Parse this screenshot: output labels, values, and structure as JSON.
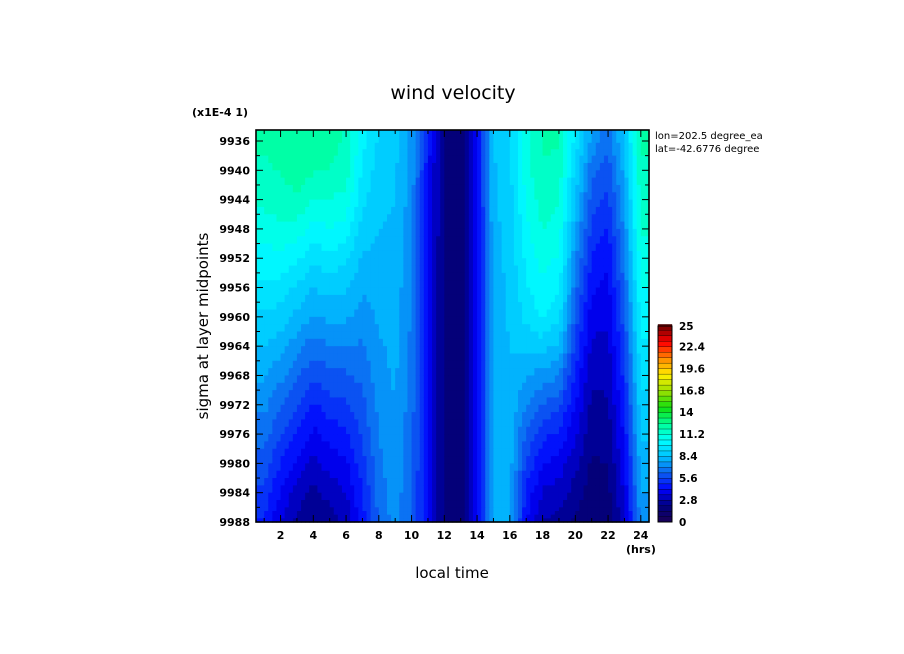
{
  "figure": {
    "title": "wind velocity",
    "scale_note": "(x1E-4 1)",
    "location": {
      "lon_text": "lon=202.5 degree_ea",
      "lat_text": "lat=-42.6776 degree"
    }
  },
  "chart_data": {
    "type": "heatmap",
    "title": "wind velocity",
    "xlabel": "local time",
    "xunit": "(hrs)",
    "ylabel": "sigma at layer midpoints",
    "yscale_note": "(x1E-4 1)",
    "xlim": [
      0.5,
      24.5
    ],
    "ylim": [
      9988,
      9934.5
    ],
    "x_ticks": [
      2,
      4,
      6,
      8,
      10,
      12,
      14,
      16,
      18,
      20,
      22,
      24
    ],
    "y_ticks": [
      9936,
      9940,
      9944,
      9948,
      9952,
      9956,
      9960,
      9964,
      9968,
      9972,
      9976,
      9980,
      9984,
      9988
    ],
    "x": [
      1,
      2,
      3,
      4,
      5,
      6,
      7,
      8,
      9,
      10,
      11,
      12,
      13,
      14,
      15,
      16,
      17,
      18,
      19,
      20,
      21,
      22,
      23,
      24
    ],
    "y": [
      9936,
      9940,
      9944,
      9948,
      9952,
      9956,
      9960,
      9964,
      9968,
      9972,
      9976,
      9980,
      9984,
      9988
    ],
    "z": [
      [
        12.0,
        12.3,
        12.4,
        12.3,
        12.1,
        11.8,
        10.0,
        9.0,
        8.6,
        7.5,
        4.6,
        1.8,
        1.6,
        4.0,
        8.4,
        9.0,
        11.0,
        12.0,
        12.0,
        9.5,
        7.5,
        6.5,
        8.5,
        12.0
      ],
      [
        11.8,
        11.9,
        12.3,
        12.0,
        11.9,
        11.6,
        9.6,
        8.8,
        8.5,
        7.4,
        4.5,
        1.8,
        1.6,
        4.0,
        8.3,
        8.9,
        10.9,
        11.8,
        11.7,
        8.9,
        6.6,
        5.9,
        8.0,
        11.8
      ],
      [
        11.4,
        11.6,
        11.8,
        11.1,
        11.2,
        10.9,
        9.3,
        8.6,
        8.4,
        7.3,
        4.5,
        1.8,
        1.6,
        4.0,
        8.3,
        8.8,
        10.6,
        11.6,
        11.3,
        8.4,
        6.0,
        5.4,
        7.6,
        11.6
      ],
      [
        10.8,
        11.0,
        10.9,
        10.2,
        10.5,
        10.2,
        8.8,
        8.4,
        8.3,
        7.2,
        4.5,
        1.8,
        1.6,
        4.0,
        8.2,
        8.7,
        10.3,
        11.2,
        10.9,
        7.8,
        5.4,
        4.9,
        7.2,
        11.3
      ],
      [
        10.2,
        10.3,
        10.0,
        9.3,
        9.6,
        9.3,
        8.3,
        8.2,
        8.2,
        7.1,
        4.4,
        1.8,
        1.6,
        4.0,
        8.2,
        8.6,
        10.0,
        10.8,
        10.4,
        7.2,
        4.8,
        4.4,
        6.8,
        10.9
      ],
      [
        9.6,
        9.5,
        9.0,
        8.4,
        8.7,
        8.5,
        7.8,
        8.0,
        8.1,
        7.0,
        4.4,
        1.8,
        1.6,
        4.0,
        8.1,
        8.5,
        9.7,
        10.4,
        9.9,
        6.6,
        4.3,
        4.0,
        6.4,
        10.5
      ],
      [
        9.0,
        8.8,
        8.2,
        7.6,
        7.9,
        7.8,
        7.4,
        7.8,
        8.0,
        6.9,
        4.4,
        1.8,
        1.6,
        4.0,
        8.1,
        8.5,
        9.3,
        9.9,
        9.3,
        6.0,
        3.8,
        3.6,
        6.0,
        10.1
      ],
      [
        8.4,
        8.0,
        7.3,
        6.6,
        7.0,
        7.0,
        6.9,
        7.6,
        7.9,
        6.8,
        4.4,
        1.8,
        1.6,
        4.0,
        8.0,
        8.4,
        8.6,
        8.7,
        8.2,
        5.4,
        3.4,
        3.3,
        5.6,
        9.7
      ],
      [
        7.8,
        7.2,
        6.4,
        5.7,
        6.1,
        6.2,
        6.5,
        7.4,
        7.8,
        6.7,
        4.3,
        1.8,
        1.6,
        4.0,
        8.0,
        8.3,
        7.8,
        7.4,
        7.0,
        4.8,
        3.0,
        3.0,
        5.2,
        9.3
      ],
      [
        7.2,
        6.4,
        5.6,
        4.8,
        5.3,
        5.5,
        6.1,
        7.2,
        7.7,
        6.6,
        4.3,
        1.8,
        1.6,
        4.0,
        7.9,
        8.2,
        7.0,
        6.2,
        5.8,
        4.2,
        2.6,
        2.7,
        4.8,
        8.9
      ],
      [
        6.6,
        5.6,
        4.8,
        4.0,
        4.5,
        4.8,
        5.7,
        7.0,
        7.6,
        6.5,
        4.3,
        1.8,
        1.6,
        4.0,
        7.9,
        8.1,
        6.2,
        5.1,
        4.8,
        3.6,
        2.3,
        2.4,
        4.4,
        8.5
      ],
      [
        6.0,
        4.9,
        4.0,
        3.3,
        3.8,
        4.1,
        5.3,
        6.8,
        7.5,
        6.4,
        4.3,
        1.8,
        1.6,
        4.0,
        7.8,
        8.0,
        5.5,
        4.2,
        3.9,
        3.0,
        2.0,
        2.1,
        4.0,
        8.1
      ],
      [
        5.4,
        4.2,
        3.2,
        2.6,
        3.1,
        3.5,
        4.9,
        6.6,
        7.4,
        6.3,
        4.3,
        1.8,
        1.6,
        4.0,
        7.8,
        7.9,
        4.8,
        3.4,
        3.1,
        2.5,
        1.7,
        1.9,
        3.6,
        7.7
      ],
      [
        4.8,
        3.5,
        2.6,
        2.2,
        2.4,
        3.0,
        4.5,
        6.4,
        7.3,
        6.2,
        4.3,
        1.8,
        1.6,
        4.0,
        7.7,
        7.8,
        4.2,
        2.8,
        2.5,
        2.0,
        1.4,
        1.6,
        3.2,
        7.3
      ]
    ],
    "colorbar": {
      "min": 0,
      "max": 25,
      "step": 0.7,
      "ticks": [
        "0",
        "2.8",
        "5.6",
        "8.4",
        "11.2",
        "14",
        "16.8",
        "19.6",
        "22.4",
        "25"
      ]
    }
  },
  "colors": {
    "stops": [
      "#1a0055",
      "#000080",
      "#0000ff",
      "#0d60f0",
      "#00c0ff",
      "#00ffff",
      "#00ff9a",
      "#10e010",
      "#98e000",
      "#fff000",
      "#ff8c00",
      "#ff0000",
      "#7a0000"
    ],
    "frame": "#000000"
  }
}
